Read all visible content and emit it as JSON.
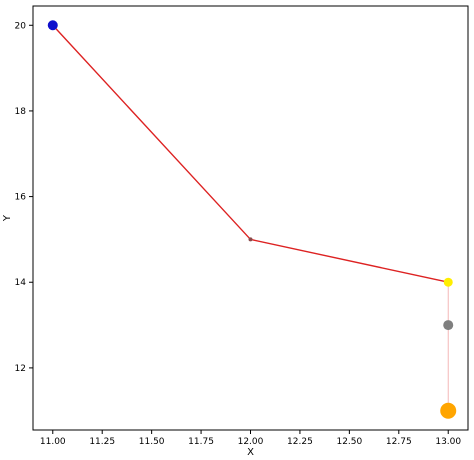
{
  "chart_data": {
    "type": "line",
    "xlabel": "X",
    "ylabel": "Y",
    "xlim": [
      10.9,
      13.1
    ],
    "ylim": [
      10.55,
      20.45
    ],
    "grid": false,
    "x_ticks": [
      11.0,
      11.25,
      11.5,
      11.75,
      12.0,
      12.25,
      12.5,
      12.75,
      13.0
    ],
    "x_tick_labels": [
      "11.00",
      "11.25",
      "11.50",
      "11.75",
      "12.00",
      "12.25",
      "12.50",
      "12.75",
      "13.00"
    ],
    "y_ticks": [
      12,
      14,
      16,
      18,
      20
    ],
    "y_tick_labels": [
      "12",
      "14",
      "16",
      "18",
      "20"
    ],
    "series": [
      {
        "style": "solid",
        "color": "#dd2222",
        "points": [
          [
            11.0,
            20.0
          ],
          [
            12.0,
            15.0
          ],
          [
            13.0,
            14.0
          ]
        ]
      },
      {
        "style": "faint",
        "color": "#f4b7b7",
        "points": [
          [
            13.0,
            14.0
          ],
          [
            13.0,
            11.0
          ]
        ]
      }
    ],
    "markers": [
      {
        "x": 11.0,
        "y": 20.0,
        "color": "#1010cc",
        "size": "medium"
      },
      {
        "x": 12.0,
        "y": 15.0,
        "color": "#8b4a4a",
        "size": "tiny"
      },
      {
        "x": 13.0,
        "y": 14.0,
        "color": "#ffee00",
        "size": "small"
      },
      {
        "x": 13.0,
        "y": 13.0,
        "color": "#7f7f7f",
        "size": "medium"
      },
      {
        "x": 13.0,
        "y": 11.0,
        "color": "#ffa500",
        "size": "large"
      }
    ]
  }
}
